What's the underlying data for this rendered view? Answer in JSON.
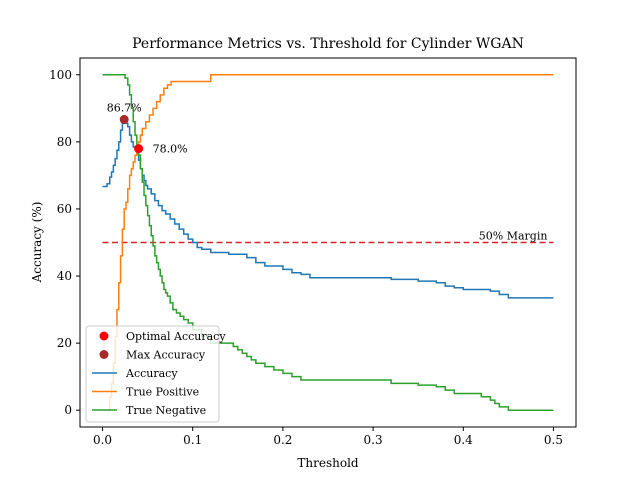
{
  "chart_data": {
    "type": "line",
    "title": "Performance Metrics vs. Threshold for Cylinder WGAN",
    "xlabel": "Threshold",
    "ylabel": "Accuracy (%)",
    "xlim": [
      -0.025,
      0.525
    ],
    "ylim": [
      -5,
      105
    ],
    "xticks": [
      0.0,
      0.1,
      0.2,
      0.3,
      0.4,
      0.5
    ],
    "xtick_labels": [
      "0.0",
      "0.1",
      "0.2",
      "0.3",
      "0.4",
      "0.5"
    ],
    "yticks": [
      0,
      20,
      40,
      60,
      80,
      100
    ],
    "ytick_labels": [
      "0",
      "20",
      "40",
      "60",
      "80",
      "100"
    ],
    "grid": false,
    "legend_position": "bottom-left",
    "series": [
      {
        "name": "Accuracy",
        "color": "#1f77b4",
        "step": true,
        "x": [
          0.0,
          0.005,
          0.008,
          0.01,
          0.012,
          0.014,
          0.016,
          0.018,
          0.02,
          0.022,
          0.024,
          0.026,
          0.028,
          0.03,
          0.032,
          0.034,
          0.036,
          0.038,
          0.04,
          0.042,
          0.044,
          0.046,
          0.048,
          0.05,
          0.054,
          0.058,
          0.062,
          0.066,
          0.07,
          0.075,
          0.08,
          0.085,
          0.09,
          0.095,
          0.1,
          0.105,
          0.11,
          0.12,
          0.14,
          0.16,
          0.17,
          0.18,
          0.2,
          0.21,
          0.22,
          0.23,
          0.26,
          0.3,
          0.32,
          0.35,
          0.37,
          0.38,
          0.39,
          0.4,
          0.43,
          0.43,
          0.44,
          0.45,
          0.5
        ],
        "y": [
          66.7,
          67.5,
          69.5,
          71.0,
          73.0,
          75.0,
          77.5,
          80.0,
          83.5,
          85.5,
          86.7,
          85.5,
          84.5,
          82.0,
          80.0,
          78.5,
          78.0,
          76.5,
          74.5,
          72.0,
          70.0,
          68.5,
          67.0,
          66.0,
          64.5,
          62.5,
          61.0,
          59.5,
          58.5,
          57.0,
          55.5,
          54.0,
          52.5,
          51.0,
          50.0,
          48.5,
          48.0,
          47.0,
          46.5,
          45.5,
          44.0,
          43.0,
          42.0,
          41.0,
          40.5,
          39.5,
          39.5,
          39.5,
          39.0,
          38.5,
          38.0,
          37.0,
          36.5,
          36.0,
          36.0,
          35.5,
          34.5,
          33.5,
          33.5
        ]
      },
      {
        "name": "True Positive",
        "color": "#ff7f0e",
        "step": true,
        "x": [
          0.0,
          0.008,
          0.01,
          0.012,
          0.014,
          0.016,
          0.018,
          0.02,
          0.022,
          0.024,
          0.026,
          0.028,
          0.03,
          0.032,
          0.034,
          0.036,
          0.038,
          0.04,
          0.042,
          0.044,
          0.048,
          0.052,
          0.056,
          0.06,
          0.064,
          0.068,
          0.072,
          0.076,
          0.08,
          0.085,
          0.09,
          0.1,
          0.11,
          0.12,
          0.5
        ],
        "y": [
          0.0,
          4.0,
          8.0,
          14.0,
          22.0,
          30.0,
          38.0,
          46.0,
          54.0,
          60.0,
          62.0,
          66.0,
          70.0,
          72.0,
          74.0,
          76.0,
          78.0,
          80.0,
          82.0,
          84.0,
          86.0,
          88.0,
          90.0,
          92.0,
          94.0,
          96.0,
          97.0,
          98.0,
          98.0,
          98.0,
          98.0,
          98.0,
          98.0,
          100.0,
          100.0
        ]
      },
      {
        "name": "True Negative",
        "color": "#2ca02c",
        "step": true,
        "x": [
          0.0,
          0.025,
          0.028,
          0.03,
          0.032,
          0.034,
          0.036,
          0.038,
          0.04,
          0.042,
          0.044,
          0.046,
          0.048,
          0.05,
          0.052,
          0.054,
          0.056,
          0.058,
          0.06,
          0.062,
          0.064,
          0.066,
          0.068,
          0.07,
          0.072,
          0.075,
          0.078,
          0.082,
          0.086,
          0.09,
          0.095,
          0.1,
          0.11,
          0.12,
          0.145,
          0.15,
          0.155,
          0.16,
          0.165,
          0.17,
          0.18,
          0.19,
          0.2,
          0.21,
          0.22,
          0.23,
          0.26,
          0.32,
          0.35,
          0.37,
          0.38,
          0.39,
          0.42,
          0.43,
          0.435,
          0.44,
          0.45,
          0.5
        ],
        "y": [
          100.0,
          99.0,
          97.0,
          94.0,
          90.0,
          86.0,
          82.0,
          79.0,
          76.0,
          72.0,
          68.0,
          64.0,
          61.0,
          58.0,
          55.0,
          52.0,
          49.0,
          46.0,
          44.0,
          42.0,
          40.0,
          38.0,
          36.0,
          35.0,
          34.0,
          32.0,
          30.0,
          29.0,
          28.0,
          27.0,
          26.0,
          24.0,
          22.0,
          20.0,
          19.0,
          18.0,
          17.0,
          16.0,
          15.0,
          14.0,
          13.0,
          12.0,
          11.0,
          10.0,
          9.0,
          9.0,
          9.0,
          8.0,
          7.5,
          7.0,
          6.0,
          5.0,
          4.0,
          3.0,
          2.0,
          1.0,
          0.0,
          0.0
        ]
      }
    ],
    "reference_line": {
      "label": "50% Margin",
      "y": 50,
      "color": "#d62728",
      "style": "dashed"
    },
    "points": [
      {
        "name": "Optimal Accuracy",
        "x": 0.04,
        "y": 78.0,
        "label": "78.0%",
        "color": "#ff0000"
      },
      {
        "name": "Max Accuracy",
        "x": 0.024,
        "y": 86.7,
        "label": "86.7%",
        "color": "#a52a2a"
      }
    ],
    "legend": [
      {
        "label": "Optimal Accuracy",
        "kind": "marker",
        "color": "#ff0000"
      },
      {
        "label": "Max Accuracy",
        "kind": "marker",
        "color": "#a52a2a"
      },
      {
        "label": "Accuracy",
        "kind": "line",
        "color": "#1f77b4"
      },
      {
        "label": "True Positive",
        "kind": "line",
        "color": "#ff7f0e"
      },
      {
        "label": "True Negative",
        "kind": "line",
        "color": "#2ca02c"
      }
    ]
  }
}
